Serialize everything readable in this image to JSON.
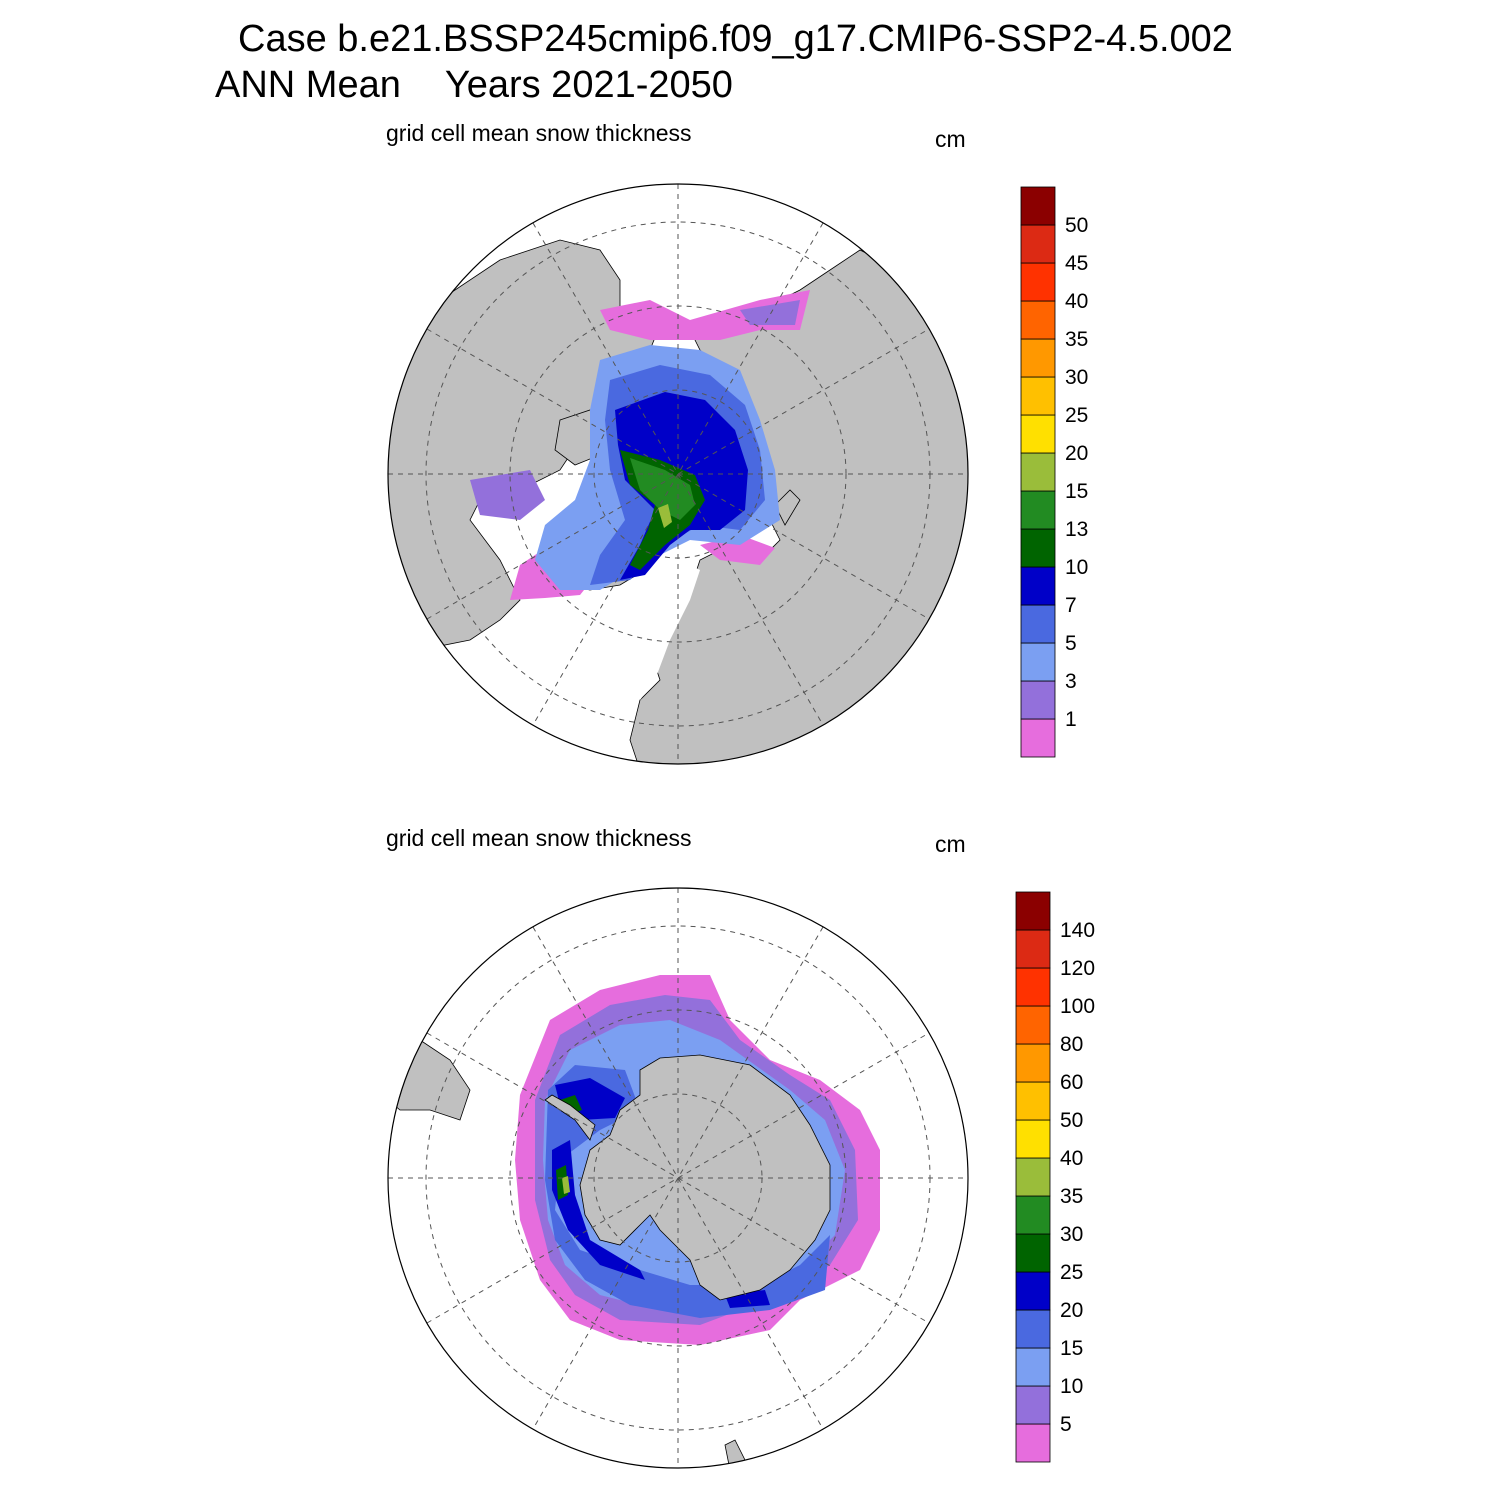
{
  "header": {
    "case_line": "Case b.e21.BSSP245cmip6.f09_g17.CMIP6-SSP2-4.5.002",
    "season": "ANN Mean",
    "years": "Years 2021-2050"
  },
  "colors": {
    "land": "#c0c0c0",
    "ocean_open": "#ffffff",
    "scale": [
      "#e66ddd",
      "#9370db",
      "#7b9ff2",
      "#4a69e0",
      "#0000c8",
      "#006400",
      "#228b22",
      "#9abd3a",
      "#ffe000",
      "#ffc000",
      "#ff9800",
      "#ff6400",
      "#ff3200",
      "#dc2a14",
      "#8b0000"
    ]
  },
  "panels": [
    {
      "id": "north",
      "title": "grid cell mean snow thickness",
      "units": "cm",
      "hemisphere": "Arctic",
      "levels": [
        "1",
        "3",
        "5",
        "7",
        "10",
        "13",
        "15",
        "20",
        "25",
        "30",
        "35",
        "40",
        "45",
        "50"
      ]
    },
    {
      "id": "south",
      "title": "grid cell mean snow thickness",
      "units": "cm",
      "hemisphere": "Antarctic",
      "levels": [
        "5",
        "10",
        "15",
        "20",
        "25",
        "30",
        "35",
        "40",
        "50",
        "60",
        "80",
        "100",
        "120",
        "140"
      ]
    }
  ]
}
